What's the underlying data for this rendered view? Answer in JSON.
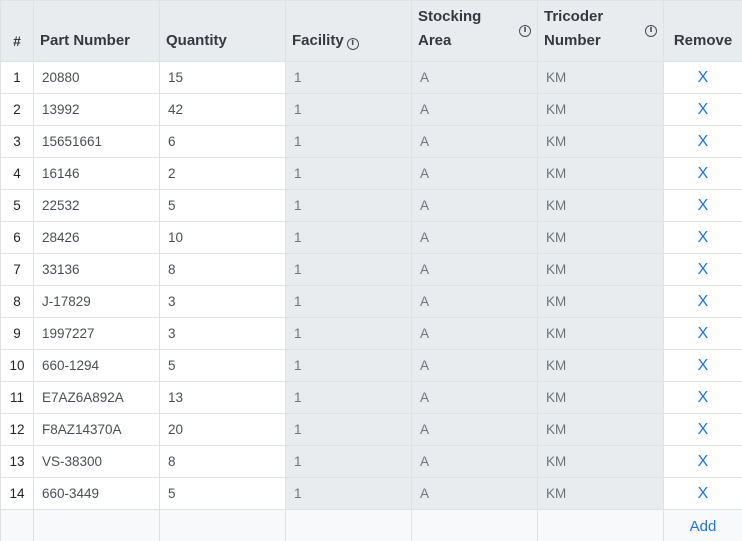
{
  "columns": {
    "num": "#",
    "part": "Part Number",
    "qty": "Quantity",
    "facility": "Facility",
    "stocking_line1": "Stocking",
    "stocking_line2": "Area",
    "tricoder_line1": "Tricoder",
    "tricoder_line2": "Number",
    "remove": "Remove"
  },
  "info_icon_glyph": "i",
  "rows": [
    {
      "num": "1",
      "part": "20880",
      "qty": "15",
      "facility": "1",
      "area": "A",
      "tricoder": "KM",
      "remove": "X"
    },
    {
      "num": "2",
      "part": "13992",
      "qty": "42",
      "facility": "1",
      "area": "A",
      "tricoder": "KM",
      "remove": "X"
    },
    {
      "num": "3",
      "part": "15651661",
      "qty": "6",
      "facility": "1",
      "area": "A",
      "tricoder": "KM",
      "remove": "X"
    },
    {
      "num": "4",
      "part": "16146",
      "qty": "2",
      "facility": "1",
      "area": "A",
      "tricoder": "KM",
      "remove": "X"
    },
    {
      "num": "5",
      "part": "22532",
      "qty": "5",
      "facility": "1",
      "area": "A",
      "tricoder": "KM",
      "remove": "X"
    },
    {
      "num": "6",
      "part": "28426",
      "qty": "10",
      "facility": "1",
      "area": "A",
      "tricoder": "KM",
      "remove": "X"
    },
    {
      "num": "7",
      "part": "33136",
      "qty": "8",
      "facility": "1",
      "area": "A",
      "tricoder": "KM",
      "remove": "X"
    },
    {
      "num": "8",
      "part": "J-17829",
      "qty": "3",
      "facility": "1",
      "area": "A",
      "tricoder": "KM",
      "remove": "X"
    },
    {
      "num": "9",
      "part": "1997227",
      "qty": "3",
      "facility": "1",
      "area": "A",
      "tricoder": "KM",
      "remove": "X"
    },
    {
      "num": "10",
      "part": "660-1294",
      "qty": "5",
      "facility": "1",
      "area": "A",
      "tricoder": "KM",
      "remove": "X"
    },
    {
      "num": "11",
      "part": "E7AZ6A892A",
      "qty": "13",
      "facility": "1",
      "area": "A",
      "tricoder": "KM",
      "remove": "X"
    },
    {
      "num": "12",
      "part": "F8AZ14370A",
      "qty": "20",
      "facility": "1",
      "area": "A",
      "tricoder": "KM",
      "remove": "X"
    },
    {
      "num": "13",
      "part": "VS-38300",
      "qty": "8",
      "facility": "1",
      "area": "A",
      "tricoder": "KM",
      "remove": "X"
    },
    {
      "num": "14",
      "part": "660-3449",
      "qty": "5",
      "facility": "1",
      "area": "A",
      "tricoder": "KM",
      "remove": "X"
    }
  ],
  "add_label": "Add",
  "colors": {
    "header_bg": "#e9ecef",
    "readonly_bg": "#e9ecef",
    "link": "#1a73e8",
    "border": "#dee2e6"
  }
}
